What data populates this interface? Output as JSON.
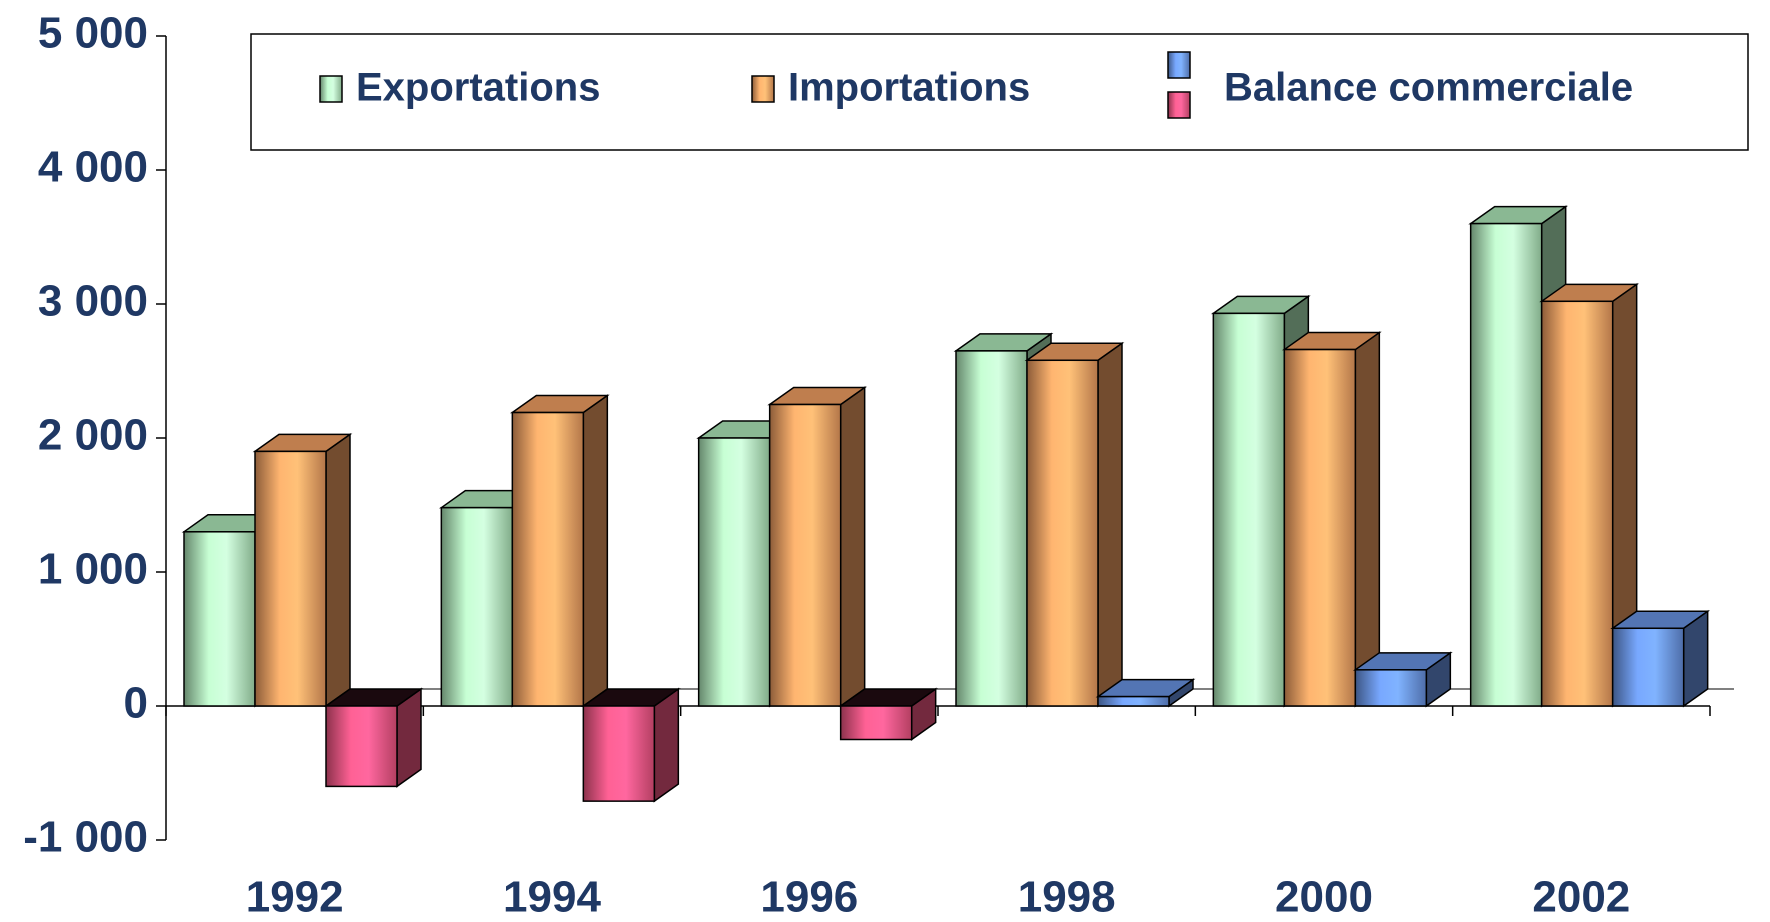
{
  "chart_data": {
    "type": "bar3d",
    "categories": [
      "1992",
      "1994",
      "1996",
      "1998",
      "2000",
      "2002"
    ],
    "series": [
      {
        "name": "Exportations",
        "color": "#b8f5c4",
        "values": [
          1300,
          1480,
          2000,
          2650,
          2930,
          3600
        ]
      },
      {
        "name": "Importations",
        "color": "#ffa868",
        "values": [
          1900,
          2190,
          2250,
          2580,
          2660,
          3020
        ]
      },
      {
        "name": "Balance commerciale",
        "color": "#6f9cf0",
        "negative_color": "#ff5a8a",
        "values": [
          -600,
          -710,
          -250,
          70,
          270,
          580
        ]
      }
    ],
    "ylim": [
      -1000,
      5000
    ],
    "yticks": [
      {
        "value": -1000,
        "label": "-1 000"
      },
      0,
      {
        "value": 1000,
        "label": "1 000"
      },
      {
        "value": 2000,
        "label": "2 000"
      },
      {
        "value": 3000,
        "label": "3 000"
      },
      {
        "value": 4000,
        "label": "4 000"
      },
      {
        "value": 5000,
        "label": "5 000"
      }
    ]
  }
}
